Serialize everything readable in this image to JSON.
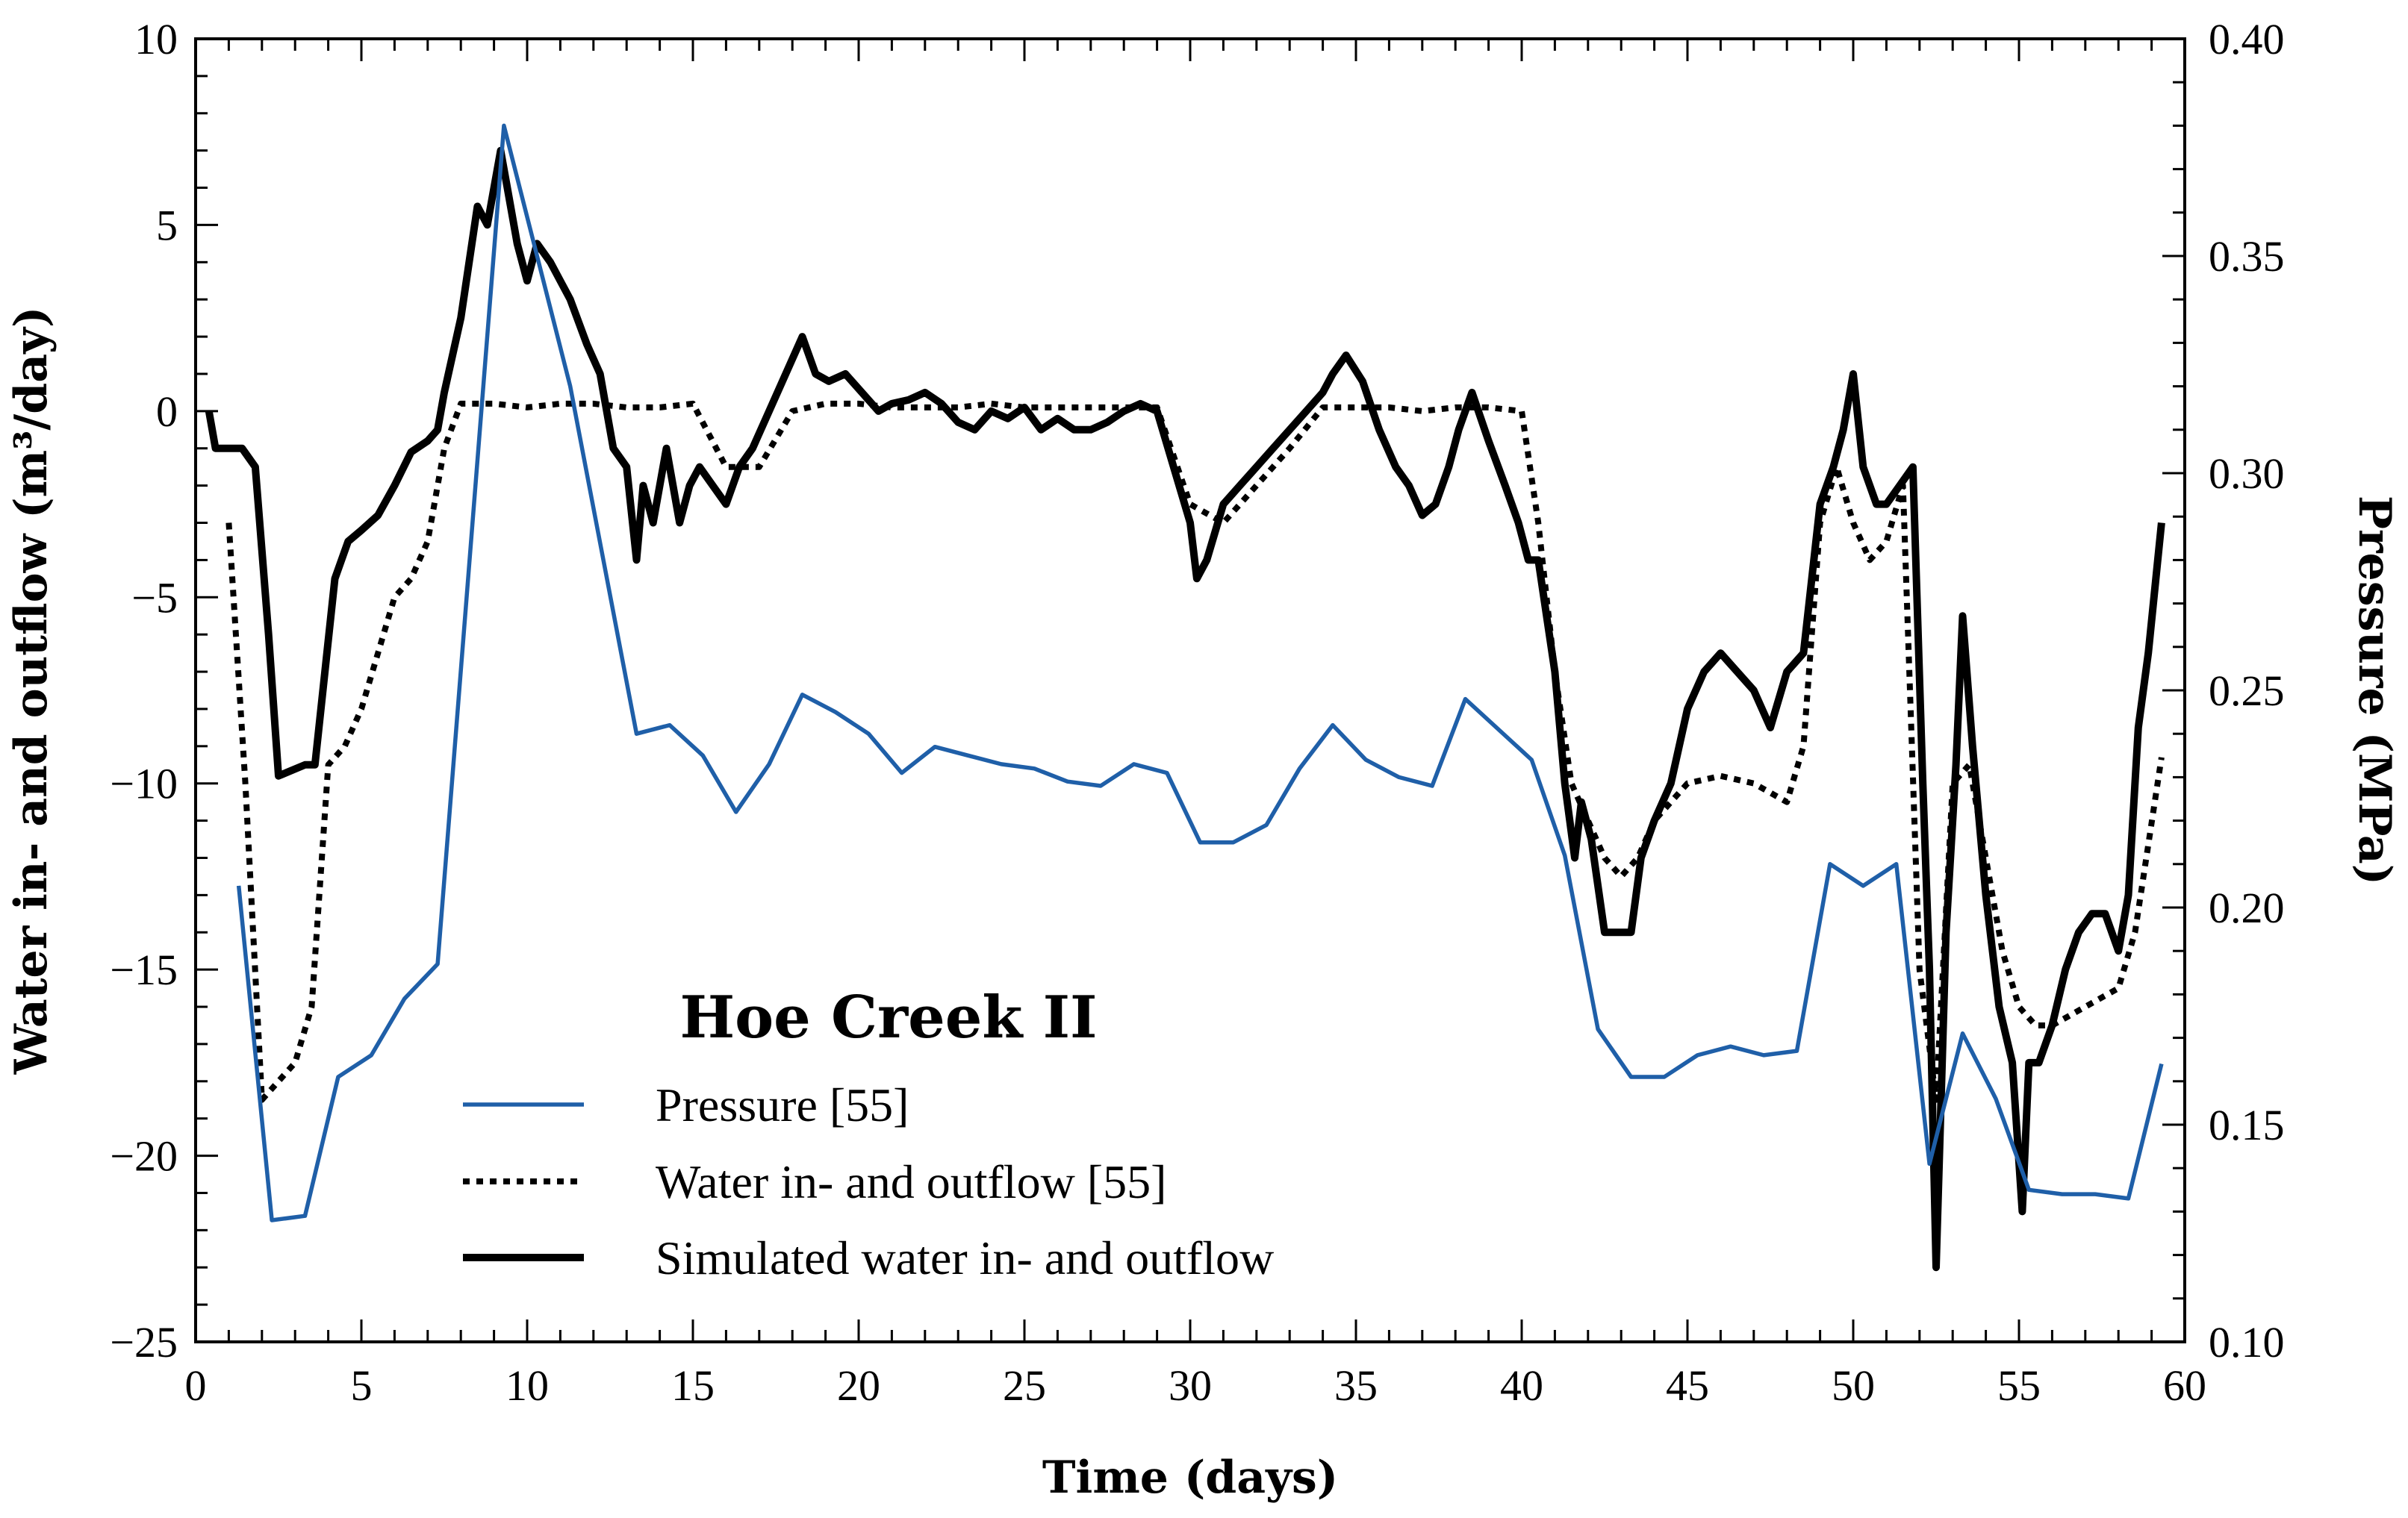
{
  "chart_data": {
    "type": "line",
    "title": "Hoe Creek II",
    "xlabel": "Time (days)",
    "ylabel_left": "Water in- and outflow (m³/day)",
    "ylabel_right": "Pressure (MPa)",
    "xlim": [
      0,
      60
    ],
    "ylim_left": [
      -25,
      10
    ],
    "ylim_right": [
      0.1,
      0.4
    ],
    "x_ticks": [
      "0",
      "5",
      "10",
      "15",
      "20",
      "25",
      "30",
      "35",
      "40",
      "45",
      "50",
      "55",
      "60"
    ],
    "y_left_ticks": [
      "10",
      "5",
      "0",
      "−5",
      "−10",
      "−15",
      "−20",
      "−25"
    ],
    "y_right_ticks": [
      "0.40",
      "0.35",
      "0.30",
      "0.25",
      "0.20",
      "0.15",
      "0.10"
    ],
    "legend": [
      "Pressure [55]",
      "Water in- and outflow [55]",
      "Simulated water in- and outflow"
    ],
    "legend_position": "bottom-left",
    "colors": {
      "pressure": "#1f5fa8",
      "water": "#000000",
      "simulated": "#000000",
      "axis": "#000000"
    },
    "series": [
      {
        "name": "Pressure [55]",
        "axis": "right",
        "style": "solid-blue",
        "x": [
          1.3,
          2.3,
          3.3,
          4.3,
          5.3,
          6.3,
          7.3,
          9.3,
          10.3,
          11.3,
          12.3,
          13.3,
          14.3,
          15.3,
          16.3,
          17.3,
          18.3,
          19.3,
          20.3,
          21.3,
          22.3,
          23.3,
          24.3,
          25.3,
          26.3,
          27.3,
          28.3,
          29.3,
          30.3,
          31.3,
          32.3,
          33.3,
          34.3,
          35.3,
          36.3,
          37.3,
          38.3,
          39.3,
          40.3,
          41.3,
          42.3,
          43.3,
          44.3,
          45.3,
          46.3,
          47.3,
          48.3,
          49.3,
          50.3,
          51.3,
          52.3,
          53.3,
          54.3,
          55.3,
          56.3,
          57.3,
          58.3,
          59.3
        ],
        "values": [
          0.205,
          0.128,
          0.129,
          0.161,
          0.166,
          0.179,
          0.187,
          0.38,
          0.35,
          0.32,
          0.28,
          0.24,
          0.242,
          0.235,
          0.222,
          0.233,
          0.249,
          0.245,
          0.24,
          0.231,
          0.237,
          0.235,
          0.233,
          0.232,
          0.229,
          0.228,
          0.233,
          0.231,
          0.215,
          0.215,
          0.219,
          0.232,
          0.242,
          0.234,
          0.23,
          0.228,
          0.248,
          0.241,
          0.234,
          0.212,
          0.172,
          0.161,
          0.161,
          0.166,
          0.168,
          0.166,
          0.167,
          0.21,
          0.205,
          0.21,
          0.141,
          0.171,
          0.156,
          0.135,
          0.134,
          0.134,
          0.133,
          0.164
        ]
      },
      {
        "name": "Water in- and outflow [55]",
        "axis": "left",
        "style": "dotted-black",
        "x": [
          1,
          1.5,
          2,
          2.5,
          3,
          3.5,
          4,
          4.5,
          5,
          5.5,
          6,
          6.5,
          7,
          7.5,
          8,
          8.5,
          9,
          10,
          11,
          12,
          13,
          14,
          15,
          16,
          17,
          18,
          19,
          20,
          21,
          22,
          23,
          24,
          25,
          26,
          27,
          28,
          29,
          30,
          31,
          32,
          33,
          34,
          35,
          36,
          37,
          38,
          39,
          40,
          40.5,
          41,
          41.5,
          42,
          42.5,
          43,
          43.5,
          44,
          45,
          46,
          47,
          48,
          48.5,
          49,
          49.5,
          50,
          50.5,
          51,
          51.5,
          52,
          52.5,
          53,
          53.5,
          54,
          54.5,
          55,
          55.5,
          56,
          57,
          58,
          58.5,
          59.3
        ],
        "values": [
          -3,
          -10,
          -18.5,
          -18,
          -17.5,
          -16,
          -9.5,
          -9,
          -8,
          -6.5,
          -5,
          -4.5,
          -3.5,
          -1,
          0.2,
          0.2,
          0.2,
          0.1,
          0.2,
          0.2,
          0.1,
          0.1,
          0.2,
          -1.5,
          -1.5,
          0,
          0.2,
          0.2,
          0.1,
          0.1,
          0.1,
          0.2,
          0.1,
          0.1,
          0.1,
          0.1,
          0.1,
          -2.5,
          -3,
          -2,
          -1,
          0.1,
          0.1,
          0.1,
          0,
          0.1,
          0.1,
          0,
          -3,
          -7,
          -10,
          -11,
          -12,
          -12.5,
          -12,
          -11,
          -10,
          -9.8,
          -10,
          -10.5,
          -9,
          -3,
          -1.5,
          -3,
          -4,
          -3.5,
          -2,
          -15,
          -18.5,
          -10,
          -9.5,
          -12,
          -14.5,
          -16,
          -16.5,
          -16.5,
          -16,
          -15.5,
          -14,
          -9.3
        ]
      },
      {
        "name": "Simulated water in- and outflow",
        "axis": "left",
        "style": "solid-black",
        "x": [
          0.4,
          0.6,
          1,
          1.4,
          1.8,
          2.2,
          2.5,
          3.3,
          3.6,
          4.2,
          4.6,
          5,
          5.5,
          6,
          6.5,
          7,
          7.3,
          7.5,
          8,
          8.5,
          8.8,
          9.2,
          9.4,
          9.7,
          10,
          10.3,
          10.7,
          11,
          11.3,
          11.8,
          12.2,
          12.6,
          13,
          13.3,
          13.5,
          13.8,
          14.2,
          14.6,
          14.9,
          15.2,
          15.6,
          16,
          16.4,
          16.8,
          17.3,
          17.8,
          18.3,
          18.7,
          19.1,
          19.6,
          20.1,
          20.6,
          21,
          21.5,
          22,
          22.5,
          23,
          23.5,
          24,
          24.5,
          25,
          25.5,
          26,
          26.5,
          27,
          27.5,
          28,
          28.5,
          29,
          29.5,
          30,
          30.2,
          30.5,
          31,
          31.5,
          32,
          32.5,
          33,
          33.5,
          34,
          34.3,
          34.7,
          35.2,
          35.7,
          36.2,
          36.6,
          37,
          37.4,
          37.8,
          38.1,
          38.5,
          39,
          39.5,
          39.9,
          40.2,
          40.5,
          41,
          41.3,
          41.6,
          41.8,
          42.1,
          42.5,
          43,
          43.3,
          43.6,
          44,
          44.5,
          45,
          45.5,
          46,
          46.5,
          47,
          47.5,
          48,
          48.5,
          49,
          49.4,
          49.7,
          50,
          50.3,
          50.7,
          51,
          51.4,
          51.8,
          52.1,
          52.3,
          52.5,
          52.8,
          53.1,
          53.3,
          53.6,
          54,
          54.4,
          54.8,
          55.1,
          55.3,
          55.6,
          56,
          56.4,
          56.8,
          57.2,
          57.6,
          58,
          58.3,
          58.6,
          58.9,
          59.3
        ],
        "values": [
          0,
          -1,
          -1,
          -1,
          -1.5,
          -6,
          -9.8,
          -9.5,
          -9.5,
          -4.5,
          -3.5,
          -3.2,
          -2.8,
          -2,
          -1.1,
          -0.8,
          -0.5,
          0.5,
          2.5,
          5.5,
          5,
          7,
          6,
          4.5,
          3.5,
          4.5,
          4,
          3.5,
          3,
          1.8,
          1,
          -1,
          -1.5,
          -4,
          -2,
          -3,
          -1,
          -3,
          -2,
          -1.5,
          -2,
          -2.5,
          -1.5,
          -1,
          0,
          1,
          2,
          1,
          0.8,
          1,
          0.5,
          0,
          0.2,
          0.3,
          0.5,
          0.2,
          -0.3,
          -0.5,
          0,
          -0.2,
          0.1,
          -0.5,
          -0.2,
          -0.5,
          -0.5,
          -0.3,
          0,
          0.2,
          0,
          -1.5,
          -3,
          -4.5,
          -4,
          -2.5,
          -2,
          -1.5,
          -1,
          -0.5,
          0,
          0.5,
          1,
          1.5,
          0.8,
          -0.5,
          -1.5,
          -2,
          -2.8,
          -2.5,
          -1.5,
          -0.5,
          0.5,
          -0.8,
          -2,
          -3,
          -4,
          -4,
          -7,
          -10,
          -12,
          -10.5,
          -11.5,
          -14,
          -14,
          -14,
          -12,
          -11,
          -10,
          -8,
          -7,
          -6.5,
          -7,
          -7.5,
          -8.5,
          -7,
          -6.5,
          -2.5,
          -1.5,
          -0.5,
          1,
          -1.5,
          -2.5,
          -2.5,
          -2,
          -1.5,
          -10,
          -15,
          -23,
          -14,
          -9.5,
          -5.5,
          -9,
          -13,
          -16,
          -17.5,
          -21.5,
          -17.5,
          -17.5,
          -16.5,
          -15,
          -14,
          -13.5,
          -13.5,
          -14.5,
          -13,
          -8.5,
          -6.5,
          -3
        ]
      }
    ]
  }
}
